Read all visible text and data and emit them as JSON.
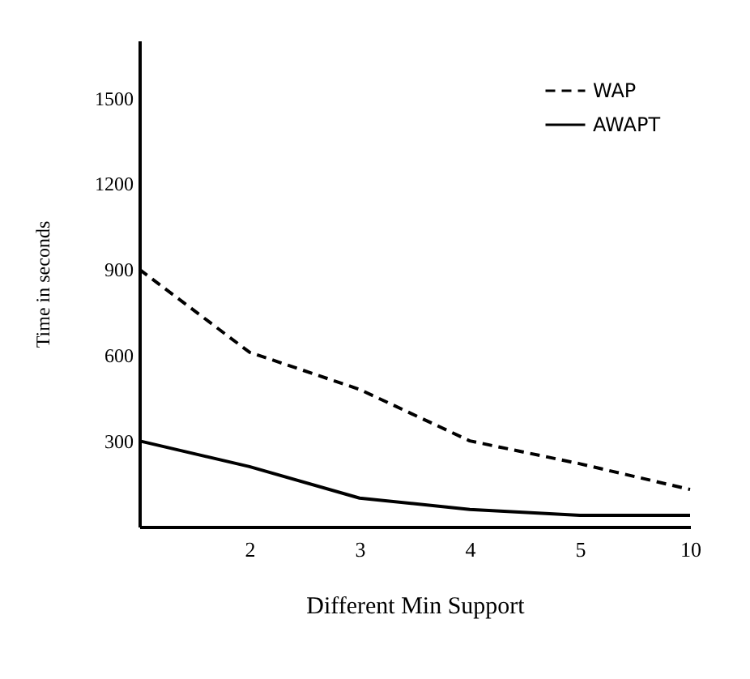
{
  "chart_data": {
    "type": "line",
    "xlabel": "Different Min Support",
    "ylabel": "Time in seconds",
    "categories": [
      null,
      "2",
      "3",
      "4",
      "5",
      "10"
    ],
    "series": [
      {
        "name": "WAP",
        "color": "#000000",
        "line_style": "dashed",
        "values": [
          900,
          610,
          480,
          300,
          220,
          130
        ]
      },
      {
        "name": "AWAPT",
        "color": "#000000",
        "line_style": "solid",
        "values": [
          300,
          210,
          100,
          60,
          40,
          40
        ]
      }
    ],
    "ylim": [
      0,
      1700
    ],
    "yticks": [
      300,
      600,
      900,
      1200,
      1500
    ],
    "grid": false,
    "legend": "top right",
    "marker": "none"
  }
}
